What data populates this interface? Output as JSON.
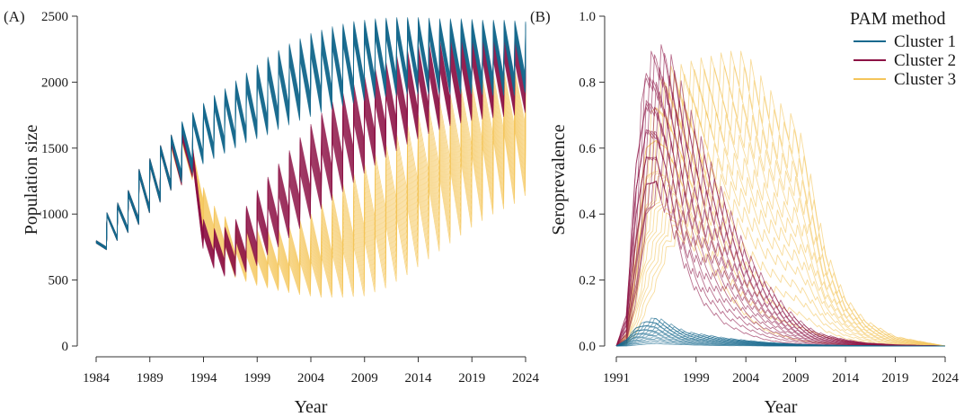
{
  "chart_data": [
    {
      "panel_label": "(A)",
      "type": "line",
      "xlabel": "Year",
      "ylabel": "Population size",
      "xlim": [
        1984,
        2024
      ],
      "ylim": [
        0,
        2500
      ],
      "xticks": [
        1984,
        1989,
        1994,
        1999,
        2004,
        2009,
        2014,
        2019,
        2024
      ],
      "yticks": [
        0,
        500,
        1000,
        1500,
        2000,
        2500
      ],
      "ytick_labels": [
        "0",
        "500",
        "1000",
        "1500",
        "2000",
        "2500"
      ],
      "grid": false,
      "series": [
        {
          "name": "Cluster 1",
          "color": "#17698e",
          "x": [
            1984,
            1985,
            1986,
            1987,
            1988,
            1989,
            1990,
            1991,
            1992,
            1993,
            1994,
            1995,
            1996,
            1997,
            1998,
            1999,
            2000,
            2002,
            2004,
            2006,
            2008,
            2010,
            2012,
            2014,
            2016,
            2018,
            2020,
            2022,
            2024
          ],
          "peak_low": [
            780,
            985,
            1050,
            1140,
            1290,
            1370,
            1470,
            1550,
            1630,
            1690,
            1750,
            1800,
            1850,
            1900,
            1940,
            1990,
            2040,
            2140,
            2210,
            2270,
            2320,
            2340,
            2350,
            2350,
            2350,
            2350,
            2340,
            2340,
            2320
          ],
          "peak_high": [
            800,
            1010,
            1085,
            1180,
            1340,
            1420,
            1520,
            1600,
            1700,
            1770,
            1840,
            1900,
            1950,
            2010,
            2070,
            2130,
            2190,
            2290,
            2370,
            2420,
            2460,
            2480,
            2490,
            2490,
            2480,
            2480,
            2470,
            2470,
            2460
          ],
          "trough_low": [
            730,
            800,
            860,
            920,
            1010,
            1090,
            1180,
            1240,
            1310,
            1380,
            1420,
            1460,
            1500,
            1540,
            1570,
            1600,
            1640,
            1710,
            1770,
            1820,
            1860,
            1890,
            1910,
            1910,
            1910,
            1910,
            1900,
            1900,
            1940
          ],
          "trough_high": [
            750,
            830,
            900,
            970,
            1060,
            1140,
            1240,
            1320,
            1400,
            1470,
            1520,
            1570,
            1610,
            1650,
            1690,
            1730,
            1780,
            1870,
            1940,
            1980,
            2020,
            2040,
            2050,
            2050,
            2050,
            2050,
            2040,
            2040,
            2080
          ]
        },
        {
          "name": "Cluster 2",
          "color": "#8c1245",
          "x": [
            1984,
            1985,
            1986,
            1987,
            1988,
            1989,
            1990,
            1991,
            1992,
            1993,
            1994,
            1995,
            1996,
            1997,
            1998,
            1999,
            2000,
            2002,
            2004,
            2006,
            2008,
            2010,
            2012,
            2014,
            2016,
            2018,
            2020,
            2022,
            2024
          ],
          "peak_low": [
            780,
            985,
            1050,
            1140,
            1290,
            1370,
            1470,
            1520,
            1560,
            1380,
            840,
            770,
            770,
            800,
            880,
            980,
            1060,
            1230,
            1400,
            1560,
            1700,
            1840,
            1940,
            2040,
            2100,
            2140,
            2160,
            2170,
            2140
          ],
          "peak_high": [
            800,
            1010,
            1085,
            1180,
            1340,
            1420,
            1520,
            1600,
            1660,
            1500,
            960,
            890,
            900,
            960,
            1060,
            1180,
            1280,
            1480,
            1680,
            1850,
            1980,
            2100,
            2200,
            2280,
            2320,
            2350,
            2370,
            2380,
            2350
          ],
          "trough_low": [
            730,
            800,
            860,
            920,
            1010,
            1090,
            1180,
            1220,
            1280,
            740,
            590,
            530,
            530,
            560,
            610,
            690,
            750,
            890,
            1040,
            1170,
            1310,
            1430,
            1530,
            1610,
            1670,
            1710,
            1730,
            1750,
            1790
          ],
          "trough_high": [
            750,
            830,
            900,
            970,
            1060,
            1140,
            1240,
            1300,
            1380,
            860,
            710,
            650,
            660,
            700,
            770,
            860,
            950,
            1120,
            1280,
            1440,
            1560,
            1680,
            1760,
            1820,
            1870,
            1900,
            1920,
            1940,
            2000
          ]
        },
        {
          "name": "Cluster 3",
          "color": "#f4c55a",
          "x": [
            1984,
            1985,
            1986,
            1987,
            1988,
            1989,
            1990,
            1991,
            1992,
            1993,
            1994,
            1995,
            1996,
            1997,
            1998,
            1999,
            2000,
            2002,
            2004,
            2006,
            2008,
            2010,
            2012,
            2014,
            2016,
            2018,
            2020,
            2022,
            2024
          ],
          "peak_low": [
            780,
            985,
            1050,
            1140,
            1290,
            1370,
            1470,
            1500,
            1540,
            1360,
            980,
            820,
            760,
            720,
            690,
            660,
            640,
            630,
            650,
            700,
            760,
            860,
            980,
            1130,
            1280,
            1400,
            1520,
            1620,
            1680
          ],
          "peak_high": [
            800,
            1010,
            1085,
            1180,
            1340,
            1420,
            1520,
            1600,
            1650,
            1480,
            1200,
            1060,
            980,
            930,
            900,
            880,
            870,
            900,
            1000,
            1150,
            1300,
            1450,
            1600,
            1750,
            1850,
            1950,
            2020,
            2080,
            2100
          ],
          "trough_low": [
            730,
            800,
            860,
            920,
            1010,
            1090,
            1180,
            1220,
            1260,
            880,
            680,
            580,
            520,
            490,
            460,
            440,
            420,
            390,
            370,
            370,
            380,
            440,
            540,
            660,
            780,
            900,
            1000,
            1080,
            1200
          ],
          "trough_high": [
            750,
            830,
            900,
            970,
            1060,
            1140,
            1240,
            1300,
            1380,
            1100,
            900,
            780,
            700,
            660,
            640,
            620,
            600,
            600,
            650,
            760,
            900,
            1040,
            1180,
            1320,
            1420,
            1520,
            1600,
            1660,
            1700
          ]
        }
      ]
    },
    {
      "panel_label": "(B)",
      "type": "line",
      "xlabel": "Year",
      "ylabel": "Seroprevalence",
      "xlim": [
        1991,
        2024
      ],
      "ylim": [
        0,
        1
      ],
      "xticks": [
        1991,
        1999,
        2004,
        2009,
        2014,
        2019,
        2024
      ],
      "yticks": [
        0,
        0.2,
        0.4,
        0.6,
        0.8,
        1.0
      ],
      "ytick_labels": [
        "0.0",
        "0.2",
        "0.4",
        "0.6",
        "0.8",
        "1.0"
      ],
      "grid": false,
      "legend": {
        "title": "PAM method",
        "placement": "top-right"
      },
      "series": [
        {
          "name": "Cluster 1",
          "color": "#17698e",
          "x": [
            1991,
            1992,
            1993,
            1994,
            1995,
            1996,
            1997,
            1998,
            1999,
            2000,
            2002,
            2004,
            2006,
            2008,
            2009,
            2010,
            2011,
            2012,
            2014,
            2016,
            2019,
            2024
          ],
          "low": [
            0,
            0,
            0.003,
            0.006,
            0.008,
            0.006,
            0.005,
            0.004,
            0.003,
            0.002,
            0.001,
            0.001,
            0,
            0,
            0,
            0,
            0,
            0,
            0,
            0,
            0,
            0
          ],
          "high": [
            0,
            0.02,
            0.06,
            0.08,
            0.09,
            0.075,
            0.06,
            0.045,
            0.04,
            0.035,
            0.025,
            0.018,
            0.012,
            0.008,
            0.006,
            0.005,
            0.004,
            0.003,
            0.002,
            0.001,
            0,
            0
          ]
        },
        {
          "name": "Cluster 2",
          "color": "#8c1245",
          "x": [
            1991,
            1992,
            1993,
            1994,
            1995,
            1996,
            1997,
            1998,
            1999,
            2000,
            2002,
            2004,
            2006,
            2008,
            2009,
            2010,
            2011,
            2012,
            2014,
            2016,
            2019,
            2024
          ],
          "low": [
            0,
            0.01,
            0.15,
            0.4,
            0.5,
            0.45,
            0.35,
            0.25,
            0.18,
            0.13,
            0.07,
            0.04,
            0.02,
            0.01,
            0.008,
            0.006,
            0.005,
            0.004,
            0.002,
            0.001,
            0,
            0
          ],
          "high": [
            0,
            0.1,
            0.6,
            0.88,
            0.92,
            0.92,
            0.86,
            0.76,
            0.68,
            0.6,
            0.45,
            0.3,
            0.2,
            0.12,
            0.09,
            0.065,
            0.045,
            0.035,
            0.02,
            0.01,
            0.004,
            0
          ]
        },
        {
          "name": "Cluster 3",
          "color": "#f4c55a",
          "x": [
            1991,
            1992,
            1993,
            1994,
            1995,
            1996,
            1997,
            1998,
            1999,
            2000,
            2002,
            2004,
            2006,
            2008,
            2009,
            2010,
            2011,
            2012,
            2014,
            2016,
            2019,
            2024
          ],
          "low": [
            0,
            0.005,
            0.04,
            0.12,
            0.2,
            0.3,
            0.35,
            0.35,
            0.32,
            0.28,
            0.18,
            0.1,
            0.05,
            0.03,
            0.02,
            0.015,
            0.012,
            0.01,
            0.005,
            0.003,
            0.001,
            0
          ],
          "high": [
            0,
            0.04,
            0.35,
            0.65,
            0.78,
            0.85,
            0.86,
            0.86,
            0.88,
            0.88,
            0.9,
            0.9,
            0.8,
            0.72,
            0.7,
            0.6,
            0.45,
            0.3,
            0.15,
            0.08,
            0.03,
            0
          ]
        }
      ]
    }
  ]
}
